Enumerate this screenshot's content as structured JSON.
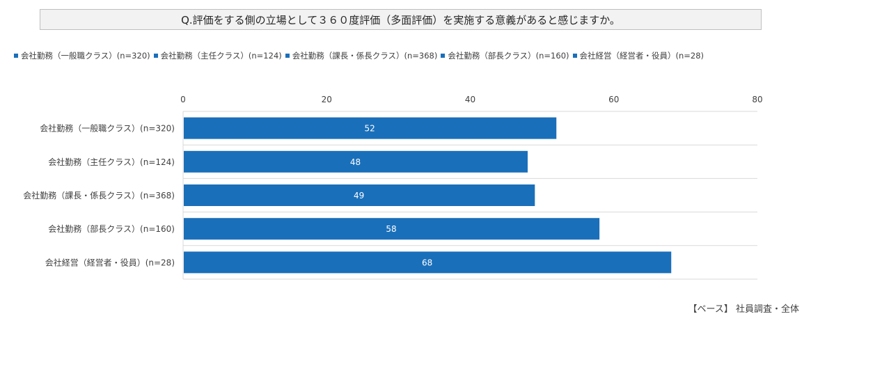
{
  "title": "Q.評価をする側の立場として３６０度評価（多面評価）を実施する意義があると感じますか。",
  "colors": {
    "bar": "#1a6fba",
    "grid": "#d9d9d9",
    "text": "#404040",
    "bar_label": "#ffffff"
  },
  "source_note": "【ベース】 社員調査・全体",
  "chart_data": {
    "type": "bar",
    "orientation": "horizontal",
    "categories": [
      "会社勤務（一般職クラス）(n=320)",
      "会社勤務（主任クラス）(n=124)",
      "会社勤務（課長・係長クラス）(n=368)",
      "会社勤務（部長クラス）(n=160)",
      "会社経営（経営者・役員）(n=28)"
    ],
    "values": [
      52,
      48,
      49,
      58,
      68
    ],
    "legend": [
      "会社勤務（一般職クラス）(n=320)",
      "会社勤務（主任クラス）(n=124)",
      "会社勤務（課長・係長クラス）(n=368)",
      "会社勤務（部長クラス）(n=160)",
      "会社経営（経営者・役員）(n=28)"
    ],
    "legend_position": "top",
    "x_ticks": [
      0,
      20,
      40,
      60,
      80
    ],
    "xlim": [
      0,
      80
    ],
    "x_axis_position": "top",
    "grid": "horizontal separators",
    "data_labels": true
  }
}
